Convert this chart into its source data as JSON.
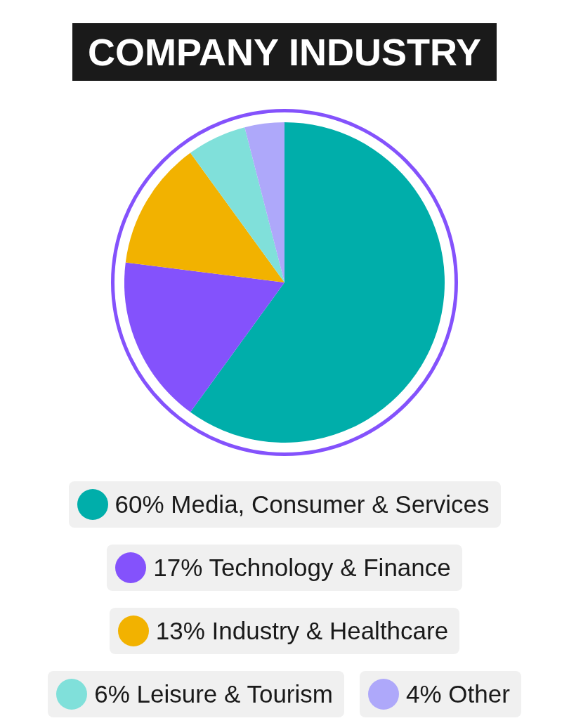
{
  "chart_data": {
    "type": "pie",
    "title": "COMPANY INDUSTRY",
    "categories": [
      "Media, Consumer & Services",
      "Technology & Finance",
      "Industry & Healthcare",
      "Leisure & Tourism",
      "Other"
    ],
    "values": [
      60,
      17,
      13,
      6,
      4
    ],
    "value_labels": [
      "60%",
      "17%",
      "13%",
      "6%",
      "4%"
    ],
    "colors": [
      "#00aeaa",
      "#8452fc",
      "#f2b200",
      "#80e0da",
      "#aea8fa"
    ],
    "legend": "bottom"
  }
}
